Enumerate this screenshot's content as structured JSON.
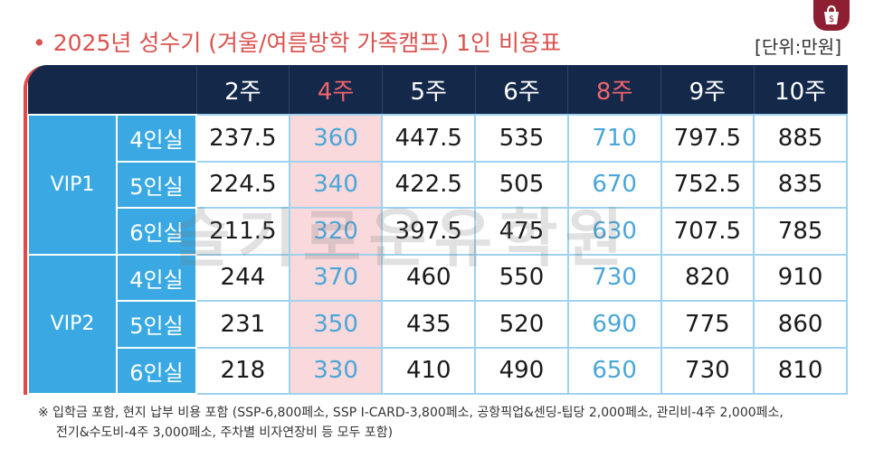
{
  "title": "2025년 성수기 (겨울/여름방학 가족캠프) 1인 비용표",
  "unit": "[단위:만원]",
  "columns": [
    "2주",
    "4주",
    "5주",
    "6주",
    "8주",
    "9주",
    "10주"
  ],
  "groups": [
    {
      "name": "VIP1",
      "rows": [
        {
          "room": "4인실",
          "values": [
            "237.5",
            "360",
            "447.5",
            "535",
            "710",
            "797.5",
            "885"
          ]
        },
        {
          "room": "5인실",
          "values": [
            "224.5",
            "340",
            "422.5",
            "505",
            "670",
            "752.5",
            "835"
          ]
        },
        {
          "room": "6인실",
          "values": [
            "211.5",
            "320",
            "397.5",
            "475",
            "630",
            "707.5",
            "785"
          ]
        }
      ]
    },
    {
      "name": "VIP2",
      "rows": [
        {
          "room": "4인실",
          "values": [
            "244",
            "370",
            "460",
            "550",
            "730",
            "820",
            "910"
          ]
        },
        {
          "room": "5인실",
          "values": [
            "231",
            "350",
            "435",
            "520",
            "690",
            "775",
            "860"
          ]
        },
        {
          "room": "6인실",
          "values": [
            "218",
            "330",
            "410",
            "490",
            "650",
            "730",
            "810"
          ]
        }
      ]
    }
  ],
  "watermark": "슬기로운유학원",
  "note_line1": "※ 입학금 포함, 현지 납부 비용 포함 (SSP-6,800페소, SSP I-CARD-3,800페소, 공항픽업&센딩-팁당 2,000페소, 관리비-4주 2,000페소,",
  "note_line2": "전기&수도비-4주 3,000페소, 주차별 비자연장비 등 모두 포함)",
  "colors": {
    "header_bg": "#14294a",
    "group_bg": "#3aa9e3",
    "highlight_text": "#f0646a",
    "accent_red": "#d9534f"
  }
}
